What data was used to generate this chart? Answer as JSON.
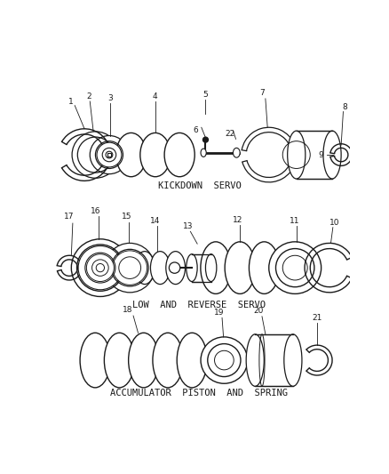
{
  "bg_color": "#ffffff",
  "line_color": "#1a1a1a",
  "section1_label": "KICKDOWN  SERVO",
  "section2_label": "LOW  AND  REVERSE  SERVO",
  "section3_label": "ACCUMULATOR  PISTON  AND  SPRING",
  "font_size_labels": 6.5,
  "font_size_section": 7.5
}
